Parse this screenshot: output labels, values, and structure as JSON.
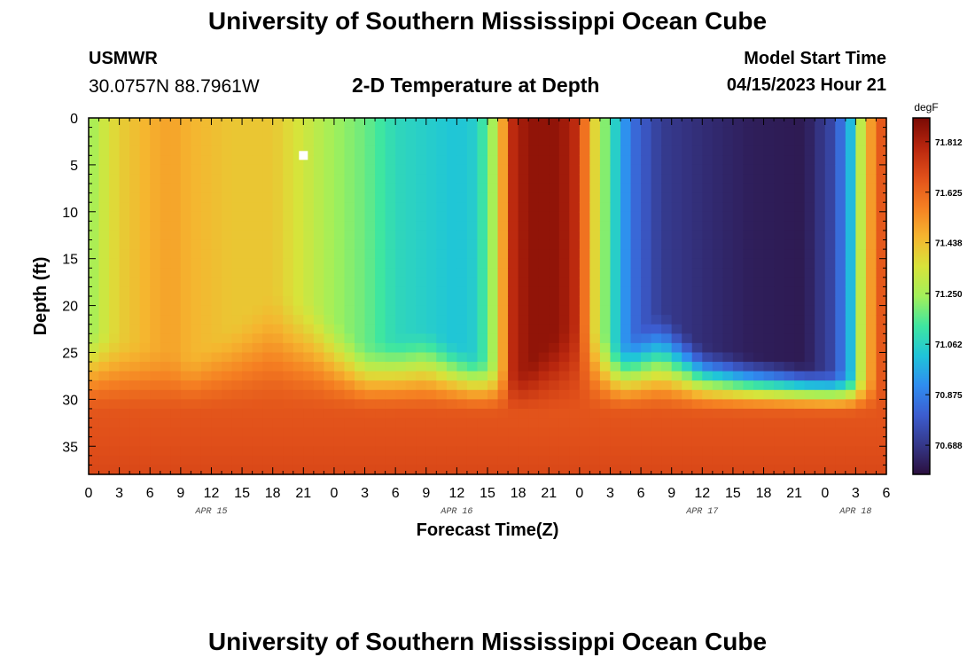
{
  "header": {
    "title": "University of Southern Mississippi Ocean Cube",
    "station": "USMWR",
    "coords": "30.0757N  88.7961W",
    "subtitle": "2-D Temperature at Depth",
    "model_label": "Model Start Time",
    "model_time": "04/15/2023 Hour 21"
  },
  "footer": {
    "title": "University of Southern Mississippi Ocean Cube"
  },
  "colors": {
    "background": "#ffffff",
    "marker": "#ffffff",
    "colormap": [
      "#2b0f3e",
      "#35388a",
      "#3c5dd0",
      "#2f8df0",
      "#1fc4d9",
      "#3fe6a0",
      "#a2f05a",
      "#d8e33a",
      "#f5b52f",
      "#f57f22",
      "#e1501a",
      "#b8260e",
      "#7a0a04"
    ]
  },
  "chart_data": {
    "type": "heatmap",
    "title": "2-D Temperature at Depth",
    "xlabel": "Forecast Time(Z)",
    "ylabel": "Depth (ft)",
    "x_tick_labels": [
      "0",
      "3",
      "6",
      "9",
      "12",
      "15",
      "18",
      "21",
      "0",
      "3",
      "6",
      "9",
      "12",
      "15",
      "18",
      "21",
      "0",
      "3",
      "6",
      "9",
      "12",
      "15",
      "18",
      "21",
      "0",
      "3",
      "6"
    ],
    "x_range_hours": [
      0,
      78
    ],
    "day_labels": [
      {
        "label": "APR 15",
        "hour": 12
      },
      {
        "label": "APR 16",
        "hour": 36
      },
      {
        "label": "APR 17",
        "hour": 60
      },
      {
        "label": "APR 18",
        "hour": 75
      }
    ],
    "y_ticks": [
      0,
      5,
      10,
      15,
      20,
      25,
      30,
      35
    ],
    "ylim": [
      38,
      0
    ],
    "colorbar": {
      "unit": "degF",
      "min": 70.58,
      "max": 71.9,
      "ticks": [
        "71.812",
        "71.625",
        "71.438",
        "71.250",
        "71.062",
        "70.875",
        "70.688"
      ]
    },
    "marker": {
      "hour": 21,
      "depth_ft": 4
    },
    "deep_layer": {
      "depth_ft": 30,
      "value_degF": 71.67
    },
    "bottom_value_degF": 71.72,
    "surface_profile": [
      {
        "hour": 0,
        "value": 71.22
      },
      {
        "hour": 1,
        "value": 71.3
      },
      {
        "hour": 3,
        "value": 71.4
      },
      {
        "hour": 6,
        "value": 71.47
      },
      {
        "hour": 8,
        "value": 71.5
      },
      {
        "hour": 10,
        "value": 71.46
      },
      {
        "hour": 14,
        "value": 71.42
      },
      {
        "hour": 18,
        "value": 71.42
      },
      {
        "hour": 20,
        "value": 71.36
      },
      {
        "hour": 22,
        "value": 71.3
      },
      {
        "hour": 24,
        "value": 71.24
      },
      {
        "hour": 27,
        "value": 71.18
      },
      {
        "hour": 30,
        "value": 71.08
      },
      {
        "hour": 33,
        "value": 71.05
      },
      {
        "hour": 36,
        "value": 71.02
      },
      {
        "hour": 38,
        "value": 71.05
      },
      {
        "hour": 39.5,
        "value": 71.25
      },
      {
        "hour": 40.5,
        "value": 71.5
      },
      {
        "hour": 41.5,
        "value": 71.78
      },
      {
        "hour": 43,
        "value": 71.86
      },
      {
        "hour": 46,
        "value": 71.86
      },
      {
        "hour": 47.5,
        "value": 71.78
      },
      {
        "hour": 48.5,
        "value": 71.6
      },
      {
        "hour": 49.5,
        "value": 71.38
      },
      {
        "hour": 51,
        "value": 71.12
      },
      {
        "hour": 53,
        "value": 70.85
      },
      {
        "hour": 56,
        "value": 70.7
      },
      {
        "hour": 60,
        "value": 70.66
      },
      {
        "hour": 65,
        "value": 70.62
      },
      {
        "hour": 70,
        "value": 70.61
      },
      {
        "hour": 73,
        "value": 70.75
      },
      {
        "hour": 74.5,
        "value": 71.0
      },
      {
        "hour": 75.5,
        "value": 71.3
      },
      {
        "hour": 77,
        "value": 71.62
      },
      {
        "hour": 78,
        "value": 71.7
      }
    ]
  }
}
